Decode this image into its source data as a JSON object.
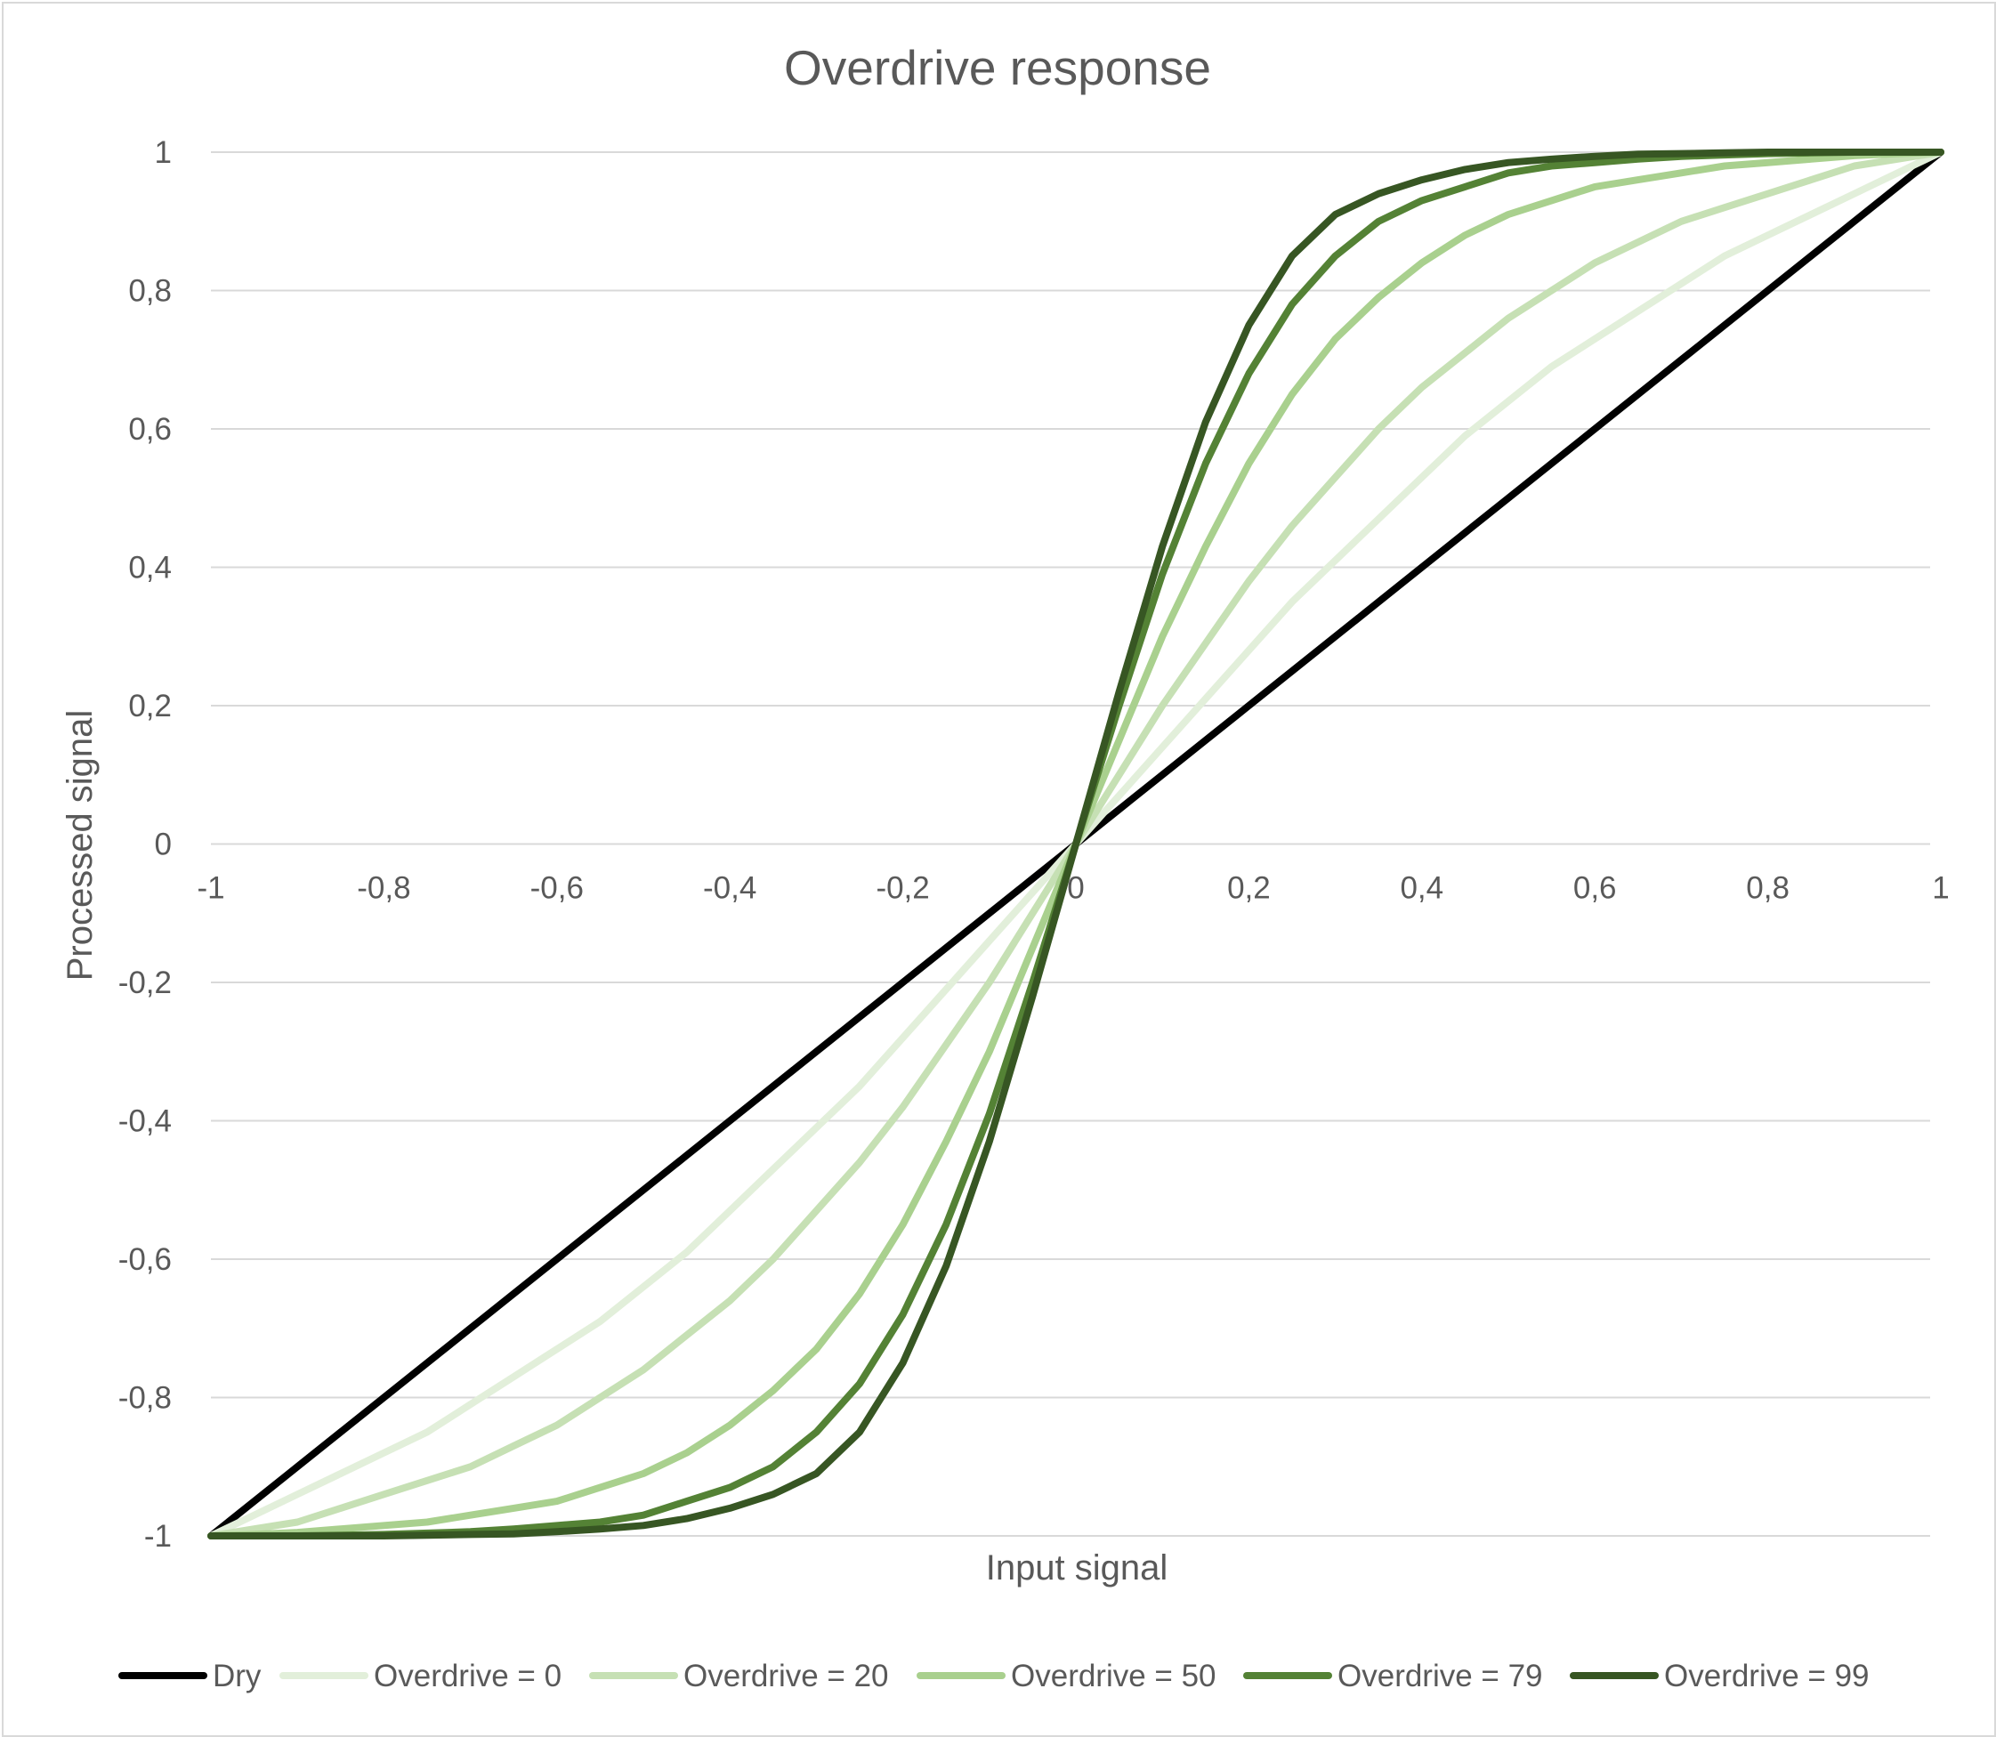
{
  "chart_data": {
    "type": "line",
    "title": "Overdrive response",
    "xlabel": "Input signal",
    "ylabel": "Processed signal",
    "xlim": [
      -1,
      1
    ],
    "ylim": [
      -1,
      1
    ],
    "x_ticks": [
      "-1",
      "-0,8",
      "-0,6",
      "-0,4",
      "-0,2",
      "0",
      "0,2",
      "0,4",
      "0,6",
      "0,8",
      "1"
    ],
    "y_ticks": [
      "1",
      "0,8",
      "0,6",
      "0,4",
      "0,2",
      "0",
      "-0,2",
      "-0,4",
      "-0,6",
      "-0,8",
      "-1"
    ],
    "grid": "horizontal",
    "legend_position": "bottom",
    "x": [
      0,
      0.05,
      0.1,
      0.15,
      0.2,
      0.25,
      0.3,
      0.35,
      0.4,
      0.45,
      0.5,
      0.55,
      0.6,
      0.65,
      0.7,
      0.75,
      0.8,
      0.85,
      0.9,
      0.95,
      1.0
    ],
    "symmetry": "odd",
    "series": [
      {
        "name": "Dry",
        "color": "#000000",
        "values": [
          0,
          0.05,
          0.1,
          0.15,
          0.2,
          0.25,
          0.3,
          0.35,
          0.4,
          0.45,
          0.5,
          0.55,
          0.6,
          0.65,
          0.7,
          0.75,
          0.8,
          0.85,
          0.9,
          0.95,
          1.0
        ]
      },
      {
        "name": "Overdrive = 0",
        "color": "#e2efda",
        "values": [
          0,
          0.07,
          0.14,
          0.21,
          0.28,
          0.35,
          0.41,
          0.47,
          0.53,
          0.59,
          0.64,
          0.69,
          0.73,
          0.77,
          0.81,
          0.85,
          0.88,
          0.91,
          0.94,
          0.97,
          1.0
        ]
      },
      {
        "name": "Overdrive = 20",
        "color": "#c6e0b4",
        "values": [
          0,
          0.1,
          0.2,
          0.29,
          0.38,
          0.46,
          0.53,
          0.6,
          0.66,
          0.71,
          0.76,
          0.8,
          0.84,
          0.87,
          0.9,
          0.92,
          0.94,
          0.96,
          0.98,
          0.99,
          1.0
        ]
      },
      {
        "name": "Overdrive = 50",
        "color": "#a9d08e",
        "values": [
          0,
          0.15,
          0.3,
          0.43,
          0.55,
          0.65,
          0.73,
          0.79,
          0.84,
          0.88,
          0.91,
          0.93,
          0.95,
          0.96,
          0.97,
          0.98,
          0.985,
          0.99,
          0.995,
          0.998,
          1.0
        ]
      },
      {
        "name": "Overdrive = 79",
        "color": "#548235",
        "values": [
          0,
          0.2,
          0.39,
          0.55,
          0.68,
          0.78,
          0.85,
          0.9,
          0.93,
          0.95,
          0.97,
          0.98,
          0.985,
          0.99,
          0.994,
          0.996,
          0.998,
          0.999,
          1.0,
          1.0,
          1.0
        ]
      },
      {
        "name": "Overdrive = 99",
        "color": "#375623",
        "values": [
          0,
          0.22,
          0.43,
          0.61,
          0.75,
          0.85,
          0.91,
          0.94,
          0.96,
          0.975,
          0.985,
          0.99,
          0.994,
          0.997,
          0.998,
          0.999,
          1.0,
          1.0,
          1.0,
          1.0,
          1.0
        ]
      }
    ]
  }
}
